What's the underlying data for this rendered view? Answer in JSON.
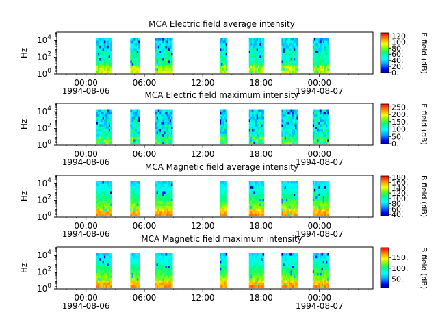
{
  "chart_data": [
    {
      "type": "heatmap",
      "title": "MCA  Electric field average intensity",
      "ylabel": "Hz",
      "yscale": "log",
      "ylim": [
        1,
        100000
      ],
      "yticks": [
        {
          "base": "10",
          "exp": "0"
        },
        {
          "base": "10",
          "exp": "2"
        },
        {
          "base": "10",
          "exp": "4"
        }
      ],
      "xlim_hours": [
        -3,
        29.5
      ],
      "xticks": [
        {
          "time": "00:00",
          "date": "1994-08-06"
        },
        {
          "time": "06:00",
          "date": ""
        },
        {
          "time": "12:00",
          "date": ""
        },
        {
          "time": "18:00",
          "date": ""
        },
        {
          "time": "00:00",
          "date": "1994-08-07"
        }
      ],
      "colorbar": {
        "label": "E field (dB)",
        "ticks": [
          "0.",
          "20.",
          "40.",
          "60.",
          "80.",
          "100.",
          "120."
        ],
        "range": [
          0,
          130
        ]
      },
      "data_windows_hours": [
        [
          1.05,
          2.65
        ],
        [
          4.55,
          5.55
        ],
        [
          7.1,
          8.9
        ],
        [
          13.75,
          14.5
        ],
        [
          16.75,
          18.3
        ],
        [
          20.1,
          21.8
        ],
        [
          23.3,
          24.95
        ]
      ],
      "base_level": 55
    },
    {
      "type": "heatmap",
      "title": "MCA  Electric field maximum intensity",
      "ylabel": "Hz",
      "yscale": "log",
      "ylim": [
        1,
        100000
      ],
      "yticks": [
        {
          "base": "10",
          "exp": "0"
        },
        {
          "base": "10",
          "exp": "2"
        },
        {
          "base": "10",
          "exp": "4"
        }
      ],
      "xlim_hours": [
        -3,
        29.5
      ],
      "xticks": [
        {
          "time": "00:00",
          "date": "1994-08-06"
        },
        {
          "time": "06:00",
          "date": ""
        },
        {
          "time": "12:00",
          "date": ""
        },
        {
          "time": "18:00",
          "date": ""
        },
        {
          "time": "00:00",
          "date": "1994-08-07"
        }
      ],
      "colorbar": {
        "label": "E field (dB)",
        "ticks": [
          "0.",
          "50.",
          "100.",
          "150.",
          "200.",
          "250."
        ],
        "range": [
          0,
          270
        ]
      },
      "data_windows_hours": [
        [
          1.05,
          2.65
        ],
        [
          4.55,
          5.55
        ],
        [
          7.1,
          8.9
        ],
        [
          13.75,
          14.5
        ],
        [
          16.75,
          18.3
        ],
        [
          20.1,
          21.8
        ],
        [
          23.3,
          24.95
        ]
      ],
      "base_level": 70
    },
    {
      "type": "heatmap",
      "title": "MCA  Magnetic field average intensity",
      "ylabel": "Hz",
      "yscale": "log",
      "ylim": [
        1,
        100000
      ],
      "yticks": [
        {
          "base": "10",
          "exp": "0"
        },
        {
          "base": "10",
          "exp": "2"
        },
        {
          "base": "10",
          "exp": "4"
        }
      ],
      "xlim_hours": [
        -3,
        29.5
      ],
      "xticks": [
        {
          "time": "00:00",
          "date": "1994-08-06"
        },
        {
          "time": "06:00",
          "date": ""
        },
        {
          "time": "12:00",
          "date": ""
        },
        {
          "time": "18:00",
          "date": ""
        },
        {
          "time": "00:00",
          "date": "1994-08-07"
        }
      ],
      "colorbar": {
        "label": "B field (dB)",
        "ticks": [
          "40.",
          "60.",
          "80.",
          "100.",
          "120.",
          "140.",
          "160.",
          "180."
        ],
        "range": [
          35,
          185
        ]
      },
      "data_windows_hours": [
        [
          1.05,
          2.65
        ],
        [
          4.55,
          5.55
        ],
        [
          7.1,
          8.9
        ],
        [
          13.75,
          14.5
        ],
        [
          16.75,
          18.3
        ],
        [
          20.1,
          21.8
        ],
        [
          23.3,
          24.95
        ]
      ],
      "base_level": 95
    },
    {
      "type": "heatmap",
      "title": "MCA  Magnetic field maximum intensity",
      "ylabel": "Hz",
      "yscale": "log",
      "ylim": [
        1,
        100000
      ],
      "yticks": [
        {
          "base": "10",
          "exp": "0"
        },
        {
          "base": "10",
          "exp": "2"
        },
        {
          "base": "10",
          "exp": "4"
        }
      ],
      "xlim_hours": [
        -3,
        29.5
      ],
      "xticks": [
        {
          "time": "00:00",
          "date": "1994-08-06"
        },
        {
          "time": "06:00",
          "date": ""
        },
        {
          "time": "12:00",
          "date": ""
        },
        {
          "time": "18:00",
          "date": ""
        },
        {
          "time": "00:00",
          "date": "1994-08-07"
        }
      ],
      "colorbar": {
        "label": "B field (dB)",
        "ticks": [
          "50.",
          "100.",
          "150."
        ],
        "range": [
          10,
          195
        ]
      },
      "data_windows_hours": [
        [
          1.05,
          2.65
        ],
        [
          4.55,
          5.55
        ],
        [
          7.1,
          8.9
        ],
        [
          13.75,
          14.5
        ],
        [
          16.75,
          18.3
        ],
        [
          20.1,
          21.8
        ],
        [
          23.3,
          24.95
        ]
      ],
      "base_level": 90
    }
  ]
}
